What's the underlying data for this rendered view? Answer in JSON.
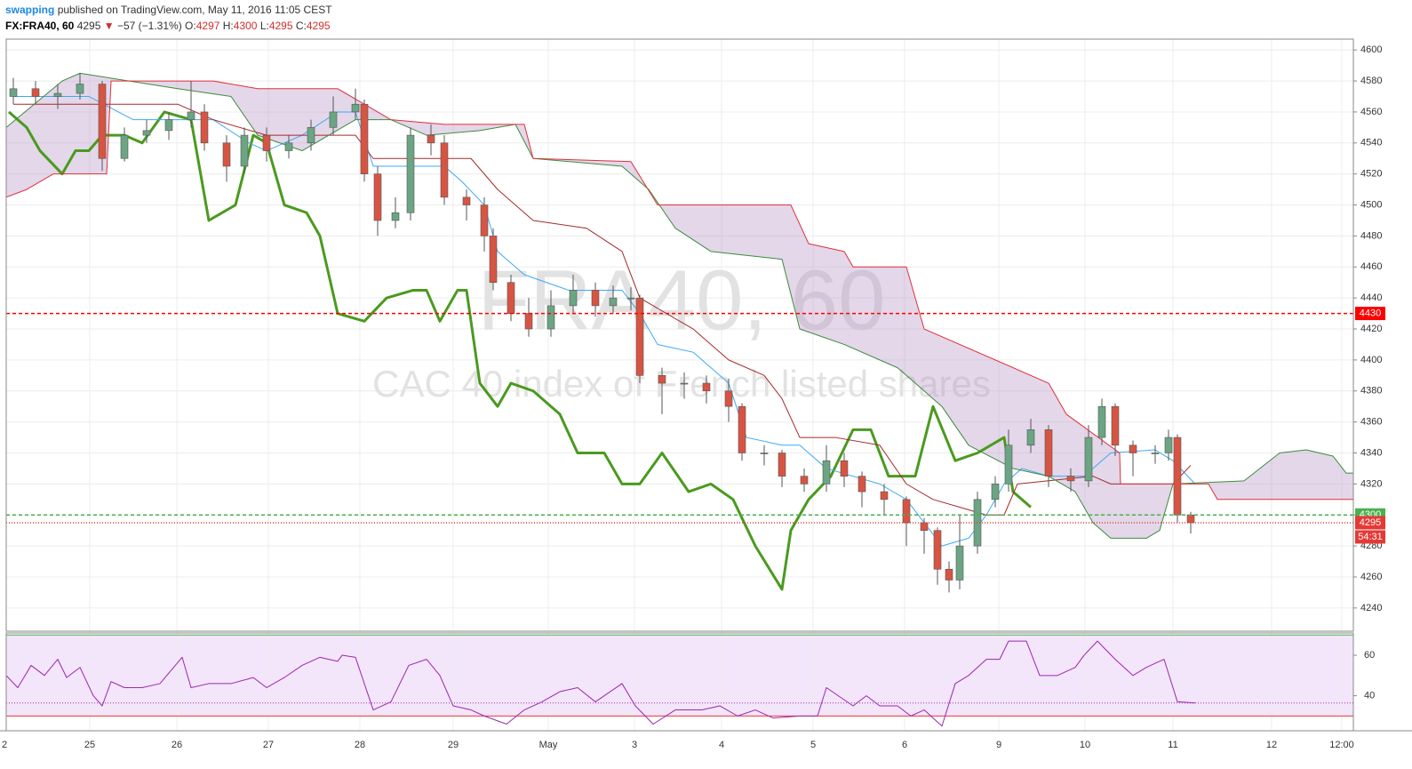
{
  "header": {
    "user": "swapping",
    "published": "published on TradingView.com, May 11, 2016 11:05 CEST",
    "symbol": "FX:FRA40, 60",
    "last": "4295",
    "arrow": "▼",
    "change": "−57 (−1.31%)",
    "open_label": "O:",
    "open": "4297",
    "high_label": "H:",
    "high": "4300",
    "low_label": "L:",
    "low": "4295",
    "close_label": "C:",
    "close": "4295"
  },
  "chart_data": {
    "type": "candlestick",
    "title": "FRA40, 60",
    "subtitle": "CAC 40 index of French listed shares",
    "xlim": [
      0.07,
      15.23
    ],
    "xticks": [
      {
        "value": 0.05,
        "label": "2"
      },
      {
        "value": 1.01,
        "label": "25"
      },
      {
        "value": 1.99,
        "label": "26"
      },
      {
        "value": 3.02,
        "label": "27"
      },
      {
        "value": 4.05,
        "label": "28"
      },
      {
        "value": 5.1,
        "label": "29"
      },
      {
        "value": 6.17,
        "label": "May"
      },
      {
        "value": 7.14,
        "label": "3"
      },
      {
        "value": 8.12,
        "label": "4"
      },
      {
        "value": 9.15,
        "label": "5"
      },
      {
        "value": 10.18,
        "label": "6"
      },
      {
        "value": 11.24,
        "label": "9"
      },
      {
        "value": 12.21,
        "label": "10"
      },
      {
        "value": 13.2,
        "label": "11"
      },
      {
        "value": 14.31,
        "label": "12"
      },
      {
        "value": 15.1,
        "label": "12:00"
      }
    ],
    "ylim": [
      4225,
      4607
    ],
    "yticks": [
      4240,
      4260,
      4280,
      4300,
      4320,
      4340,
      4360,
      4380,
      4400,
      4420,
      4440,
      4460,
      4480,
      4500,
      4520,
      4540,
      4560,
      4580,
      4600
    ],
    "grid": true,
    "up_color": "#6ba583",
    "down_color": "#d75442",
    "x": [
      0.15,
      0.4,
      0.65,
      0.9,
      1.15,
      1.4,
      1.65,
      1.9,
      2.15,
      2.3,
      2.55,
      2.75,
      3.0,
      3.25,
      3.5,
      3.75,
      4.0,
      4.1,
      4.25,
      4.45,
      4.62,
      4.85,
      5.0,
      5.25,
      5.45,
      5.55,
      5.75,
      5.95,
      6.2,
      6.45,
      6.7,
      6.9,
      7.1,
      7.2,
      7.45,
      7.7,
      7.95,
      8.2,
      8.35,
      8.6,
      8.8,
      9.05,
      9.3,
      9.5,
      9.7,
      9.95,
      10.2,
      10.4,
      10.55,
      10.68,
      10.8,
      11.0,
      11.2,
      11.35,
      11.6,
      11.8,
      12.05,
      12.25,
      12.4,
      12.55,
      12.75,
      13.0,
      13.15,
      13.25,
      13.4
    ],
    "ohlc": [
      [
        4570,
        4582,
        4565,
        4575
      ],
      [
        4575,
        4580,
        4565,
        4570
      ],
      [
        4570,
        4578,
        4562,
        4572
      ],
      [
        4572,
        4585,
        4568,
        4578
      ],
      [
        4578,
        4580,
        4522,
        4530
      ],
      [
        4530,
        4550,
        4528,
        4545
      ],
      [
        4545,
        4555,
        4540,
        4548
      ],
      [
        4548,
        4560,
        4542,
        4555
      ],
      [
        4555,
        4580,
        4550,
        4560
      ],
      [
        4560,
        4565,
        4535,
        4540
      ],
      [
        4540,
        4545,
        4515,
        4525
      ],
      [
        4525,
        4550,
        4520,
        4545
      ],
      [
        4545,
        4550,
        4528,
        4535
      ],
      [
        4535,
        4545,
        4530,
        4540
      ],
      [
        4540,
        4555,
        4535,
        4550
      ],
      [
        4550,
        4570,
        4545,
        4560
      ],
      [
        4560,
        4575,
        4555,
        4565
      ],
      [
        4565,
        4568,
        4515,
        4520
      ],
      [
        4520,
        4525,
        4480,
        4490
      ],
      [
        4490,
        4505,
        4485,
        4495
      ],
      [
        4495,
        4550,
        4490,
        4545
      ],
      [
        4545,
        4552,
        4532,
        4540
      ],
      [
        4540,
        4545,
        4500,
        4505
      ],
      [
        4505,
        4510,
        4490,
        4500
      ],
      [
        4500,
        4505,
        4470,
        4480
      ],
      [
        4480,
        4485,
        4445,
        4450
      ],
      [
        4450,
        4455,
        4425,
        4430
      ],
      [
        4430,
        4440,
        4415,
        4420
      ],
      [
        4420,
        4445,
        4415,
        4435
      ],
      [
        4435,
        4455,
        4430,
        4445
      ],
      [
        4445,
        4450,
        4428,
        4435
      ],
      [
        4435,
        4448,
        4430,
        4440
      ],
      [
        4440,
        4447,
        4432,
        4440
      ],
      [
        4440,
        4442,
        4385,
        4390
      ],
      [
        4390,
        4395,
        4365,
        4385
      ],
      [
        4385,
        4392,
        4375,
        4385
      ],
      [
        4385,
        4390,
        4372,
        4380
      ],
      [
        4380,
        4388,
        4360,
        4370
      ],
      [
        4370,
        4372,
        4335,
        4340
      ],
      [
        4340,
        4345,
        4332,
        4340
      ],
      [
        4340,
        4342,
        4318,
        4325
      ],
      [
        4325,
        4330,
        4315,
        4320
      ],
      [
        4320,
        4345,
        4315,
        4335
      ],
      [
        4335,
        4340,
        4318,
        4325
      ],
      [
        4325,
        4328,
        4305,
        4315
      ],
      [
        4315,
        4320,
        4300,
        4310
      ],
      [
        4310,
        4312,
        4280,
        4295
      ],
      [
        4295,
        4298,
        4275,
        4290
      ],
      [
        4290,
        4292,
        4255,
        4265
      ],
      [
        4265,
        4270,
        4250,
        4258
      ],
      [
        4258,
        4300,
        4252,
        4280
      ],
      [
        4280,
        4315,
        4275,
        4310
      ],
      [
        4310,
        4325,
        4305,
        4320
      ],
      [
        4320,
        4355,
        4315,
        4345
      ],
      [
        4345,
        4362,
        4340,
        4355
      ],
      [
        4355,
        4358,
        4318,
        4325
      ],
      [
        4325,
        4330,
        4315,
        4322
      ],
      [
        4322,
        4358,
        4318,
        4350
      ],
      [
        4350,
        4375,
        4345,
        4370
      ],
      [
        4370,
        4372,
        4338,
        4345
      ],
      [
        4345,
        4348,
        4325,
        4340
      ],
      [
        4340,
        4345,
        4333,
        4340
      ],
      [
        4340,
        4355,
        4335,
        4350
      ],
      [
        4350,
        4352,
        4295,
        4300
      ],
      [
        4300,
        4302,
        4288,
        4295
      ]
    ],
    "lines": [
      {
        "color": "#4a9a1e",
        "width": 3,
        "x": [
          0.1,
          0.3,
          0.45,
          0.7,
          0.85,
          1.0,
          1.15,
          1.4,
          1.6,
          1.85,
          2.15,
          2.35,
          2.65,
          2.85,
          3.0,
          3.2,
          3.45,
          3.6,
          3.8,
          4.1,
          4.35,
          4.65,
          4.8,
          4.95,
          5.15,
          5.25,
          5.4,
          5.6,
          5.75,
          6.0,
          6.3,
          6.5,
          6.8,
          7.0,
          7.2,
          7.45,
          7.75,
          8.0,
          8.25,
          8.5,
          8.8,
          8.9,
          9.1,
          9.35,
          9.6,
          9.8,
          10.0,
          10.3,
          10.5,
          10.75,
          11.0,
          11.3,
          11.4,
          11.6
        ],
        "values": [
          4560,
          4550,
          4535,
          4520,
          4535,
          4535,
          4545,
          4545,
          4540,
          4560,
          4555,
          4490,
          4500,
          4545,
          4540,
          4500,
          4495,
          4480,
          4430,
          4425,
          4440,
          4445,
          4445,
          4425,
          4445,
          4445,
          4385,
          4370,
          4385,
          4380,
          4365,
          4340,
          4340,
          4320,
          4320,
          4340,
          4315,
          4320,
          4310,
          4280,
          4252,
          4290,
          4310,
          4325,
          4355,
          4355,
          4325,
          4325,
          4370,
          4335,
          4340,
          4350,
          4315,
          4305
        ]
      },
      {
        "color": "#3fa9f5",
        "width": 1,
        "x": [
          0.15,
          1.0,
          1.5,
          2.0,
          2.4,
          2.8,
          3.0,
          3.4,
          3.8,
          4.0,
          4.2,
          4.6,
          5.0,
          5.2,
          5.45,
          5.6,
          5.9,
          6.4,
          7.0,
          7.2,
          7.4,
          7.8,
          8.2,
          8.4,
          8.8,
          9.0,
          9.3,
          9.9,
          10.2,
          10.4,
          10.6,
          10.9,
          11.1,
          11.3,
          11.5,
          11.8,
          12.2,
          12.5,
          13.0,
          13.2,
          13.45
        ],
        "values": [
          4570,
          4570,
          4555,
          4555,
          4555,
          4540,
          4535,
          4545,
          4560,
          4560,
          4525,
          4525,
          4525,
          4515,
          4500,
          4470,
          4455,
          4445,
          4445,
          4430,
          4410,
          4405,
          4385,
          4350,
          4345,
          4345,
          4330,
          4320,
          4310,
          4295,
          4280,
          4285,
          4300,
          4320,
          4330,
          4325,
          4325,
          4340,
          4342,
          4335,
          4320
        ]
      },
      {
        "color": "#a52a2a",
        "width": 1,
        "x": [
          0.15,
          2.0,
          2.4,
          3.0,
          4.0,
          4.2,
          5.3,
          5.6,
          6.0,
          6.6,
          7.0,
          7.2,
          7.8,
          8.2,
          8.6,
          8.8,
          9.0,
          9.4,
          9.9,
          10.2,
          10.5,
          10.8,
          11.1,
          11.3,
          11.45,
          12.3,
          12.5,
          13.2,
          13.4
        ],
        "values": [
          4565,
          4565,
          4555,
          4545,
          4545,
          4530,
          4530,
          4510,
          4490,
          4485,
          4470,
          4440,
          4420,
          4400,
          4390,
          4375,
          4350,
          4350,
          4345,
          4320,
          4310,
          4305,
          4300,
          4300,
          4320,
          4325,
          4320,
          4320,
          4332
        ]
      },
      {
        "color": "#3c8c3c",
        "width": 1,
        "x": [
          0.07,
          0.7,
          0.9,
          2.0,
          2.6,
          2.9,
          3.4,
          4.0,
          4.4,
          4.8,
          5.4,
          5.8,
          6.0,
          7.0,
          7.3,
          7.6,
          8.0,
          8.8,
          9.0,
          9.5,
          10.1,
          10.3,
          10.6,
          10.9,
          11.4,
          11.8,
          12.1,
          12.3,
          12.5,
          12.9,
          13.05,
          13.2,
          14.0,
          14.4,
          14.7,
          15.0,
          15.15,
          15.23
        ],
        "values": [
          4550,
          4580,
          4585,
          4575,
          4570,
          4545,
          4535,
          4555,
          4555,
          4545,
          4548,
          4552,
          4530,
          4525,
          4510,
          4485,
          4470,
          4465,
          4420,
          4410,
          4395,
          4385,
          4370,
          4345,
          4330,
          4325,
          4315,
          4295,
          4285,
          4285,
          4290,
          4320,
          4322,
          4340,
          4342,
          4338,
          4327,
          4327
        ]
      },
      {
        "color": "#e0303a",
        "width": 1,
        "x": [
          0.07,
          0.3,
          0.6,
          1.2,
          1.25,
          2.4,
          2.9,
          3.8,
          4.4,
          5.0,
          5.9,
          6.0,
          7.1,
          7.4,
          8.9,
          9.1,
          9.5,
          9.6,
          10.2,
          10.4,
          11.8,
          12.0,
          12.6,
          12.61,
          13.6,
          13.7,
          15.23
        ],
        "values": [
          4505,
          4510,
          4520,
          4520,
          4580,
          4580,
          4575,
          4575,
          4555,
          4552,
          4552,
          4530,
          4528,
          4500,
          4500,
          4475,
          4470,
          4460,
          4460,
          4420,
          4385,
          4365,
          4340,
          4320,
          4320,
          4310,
          4310
        ]
      }
    ],
    "cloud": [
      3,
      4
    ],
    "cloud_color": "#b89cc8",
    "levels": [
      {
        "value": 4430,
        "color": "#ff0000",
        "dash": "4 3"
      },
      {
        "value": 4300,
        "color": "#4caf50",
        "dash": "4 3"
      },
      {
        "value": 4295,
        "color": "#e53935",
        "dash": "1 2"
      }
    ],
    "countdown": "54:31",
    "rsi": {
      "color": "#9c27b0",
      "ylim": [
        22.7,
        71
      ],
      "yticks": [
        40,
        60
      ],
      "bands": [
        70,
        30
      ],
      "band_colors": [
        "#4caf50",
        "#e53935"
      ],
      "fill": "#f3e5fa",
      "x": [
        0.07,
        0.2,
        0.35,
        0.5,
        0.65,
        0.75,
        0.9,
        1.05,
        1.15,
        1.25,
        1.4,
        1.6,
        1.8,
        2.05,
        2.15,
        2.35,
        2.6,
        2.85,
        3.0,
        3.2,
        3.4,
        3.6,
        3.8,
        3.85,
        4.0,
        4.2,
        4.4,
        4.6,
        4.8,
        4.95,
        5.1,
        5.3,
        5.45,
        5.7,
        5.9,
        6.1,
        6.3,
        6.5,
        6.7,
        7.0,
        7.15,
        7.35,
        7.6,
        7.9,
        8.1,
        8.3,
        8.5,
        8.7,
        9.0,
        9.2,
        9.3,
        9.6,
        9.75,
        9.9,
        10.1,
        10.25,
        10.4,
        10.6,
        10.75,
        10.9,
        11.1,
        11.25,
        11.35,
        11.55,
        11.7,
        11.9,
        12.1,
        12.2,
        12.35,
        12.55,
        12.75,
        12.9,
        13.1,
        13.25,
        13.45
      ],
      "values": [
        50,
        44,
        55,
        50,
        58,
        49,
        54,
        40,
        35,
        47,
        44,
        44,
        46,
        59,
        44,
        46,
        46,
        49,
        44,
        49,
        55,
        59,
        57,
        60,
        59,
        33,
        37,
        55,
        58,
        50,
        35,
        33,
        30,
        26,
        33,
        37,
        42,
        44,
        37,
        46,
        35,
        26,
        33,
        33,
        35,
        30,
        33,
        29,
        30,
        30,
        44,
        35,
        40,
        35,
        35,
        30,
        33,
        25,
        46,
        50,
        58,
        58,
        67,
        67,
        50,
        50,
        54,
        60,
        67,
        58,
        50,
        54,
        58,
        37,
        36.4
      ]
    }
  }
}
